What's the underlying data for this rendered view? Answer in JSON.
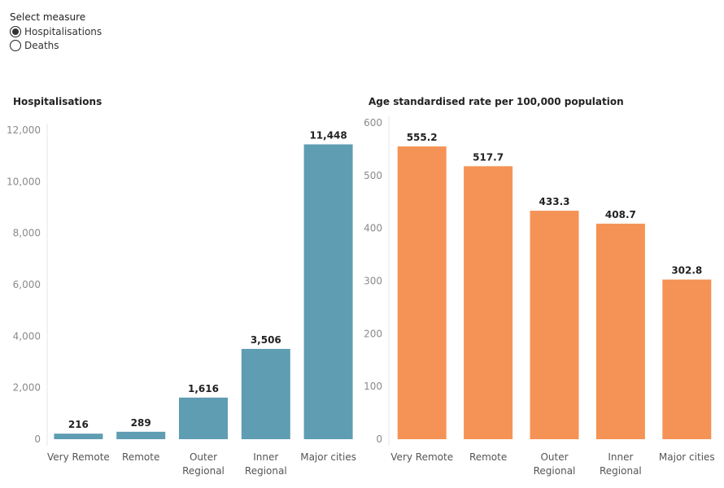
{
  "selector": {
    "title": "Select measure",
    "options": [
      {
        "label": "Hospitalisations",
        "selected": true
      },
      {
        "label": "Deaths",
        "selected": false
      }
    ]
  },
  "chart_data": [
    {
      "type": "bar",
      "title": "Hospitalisations",
      "categories": [
        [
          "Very Remote"
        ],
        [
          "Remote"
        ],
        [
          "Outer",
          "Regional"
        ],
        [
          "Inner",
          "Regional"
        ],
        [
          "Major cities"
        ]
      ],
      "values": [
        216,
        289,
        1616,
        3506,
        11448
      ],
      "value_labels": [
        "216",
        "289",
        "1,616",
        "3,506",
        "11,448"
      ],
      "ylim": [
        0,
        12000
      ],
      "yticks": [
        0,
        2000,
        4000,
        6000,
        8000,
        10000,
        12000
      ],
      "ytick_labels": [
        "0",
        "2,000",
        "4,000",
        "6,000",
        "8,000",
        "10,000",
        "12,000"
      ],
      "color": "#5f9db2",
      "grid": false
    },
    {
      "type": "bar",
      "title": "Age standardised rate per 100,000 population",
      "categories": [
        [
          "Very Remote"
        ],
        [
          "Remote"
        ],
        [
          "Outer",
          "Regional"
        ],
        [
          "Inner",
          "Regional"
        ],
        [
          "Major cities"
        ]
      ],
      "values": [
        555.2,
        517.7,
        433.3,
        408.7,
        302.8
      ],
      "value_labels": [
        "555.2",
        "517.7",
        "433.3",
        "408.7",
        "302.8"
      ],
      "ylim": [
        0,
        600
      ],
      "yticks": [
        0,
        100,
        200,
        300,
        400,
        500,
        600
      ],
      "ytick_labels": [
        "0",
        "100",
        "200",
        "300",
        "400",
        "500",
        "600"
      ],
      "color": "#f59356",
      "grid": false
    }
  ]
}
